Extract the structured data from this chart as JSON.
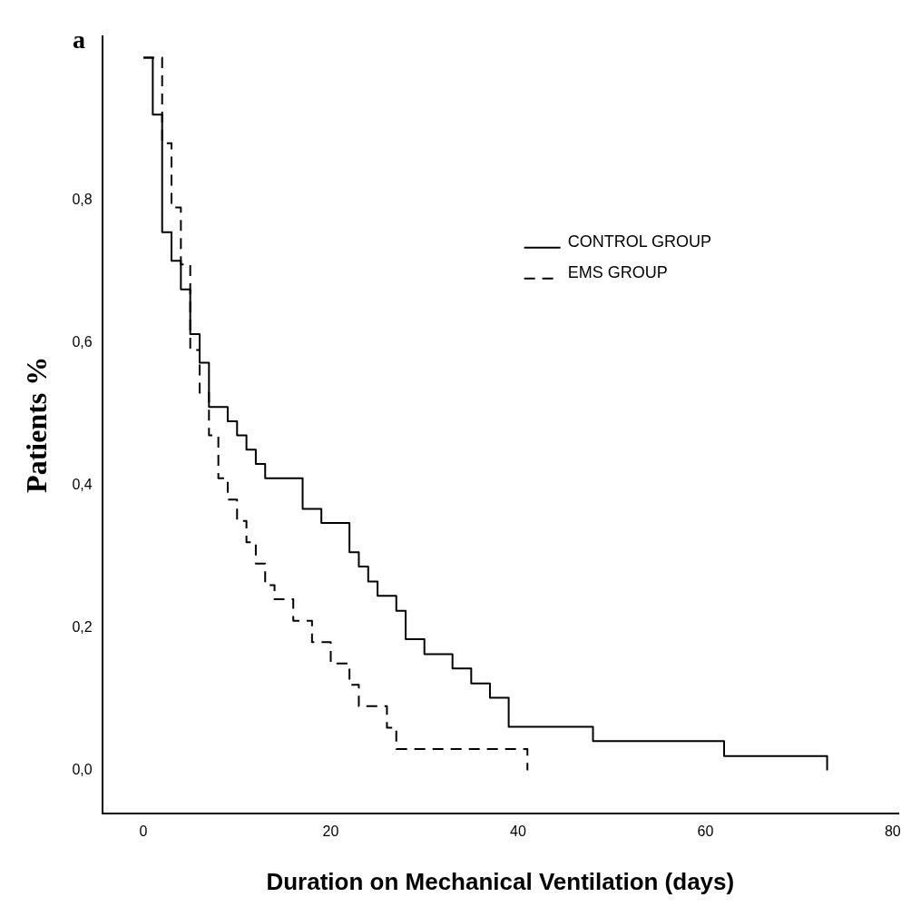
{
  "chart_data": {
    "type": "step",
    "title": "a",
    "xlabel": "Duration on Mechanical Ventilation (days)",
    "ylabel": "Patients %",
    "xlim": [
      -4.4,
      80.6
    ],
    "xticks": [
      0,
      20,
      40,
      60,
      80
    ],
    "ylim": [
      -0.06,
      1.03
    ],
    "yticks": [
      {
        "value": 0,
        "label": "0,0"
      },
      {
        "value": 0.2,
        "label": "0,2"
      },
      {
        "value": 0.4,
        "label": "0,4"
      },
      {
        "value": 0.6,
        "label": "0,6"
      },
      {
        "value": 0.8,
        "label": "0,8"
      }
    ],
    "grid": false,
    "legend": "top right",
    "marker": "none",
    "series": [
      {
        "name": "CONTROL GROUP",
        "color": "#000000",
        "line_style": "solid",
        "x": [
          0,
          1,
          2,
          3,
          4,
          5,
          6,
          7,
          9,
          10,
          11,
          12,
          13,
          17,
          19,
          22,
          23,
          24,
          25,
          27,
          28,
          30,
          33,
          35,
          37,
          39,
          48,
          62,
          73
        ],
        "values": [
          1.0,
          0.92,
          0.755,
          0.715,
          0.675,
          0.612,
          0.572,
          0.51,
          0.49,
          0.47,
          0.45,
          0.43,
          0.41,
          0.367,
          0.347,
          0.306,
          0.286,
          0.265,
          0.245,
          0.224,
          0.184,
          0.163,
          0.143,
          0.122,
          0.102,
          0.061,
          0.041,
          0.02,
          0.0
        ]
      },
      {
        "name": "EMS GROUP",
        "color": "#000000",
        "line_style": "dashed",
        "x": [
          0,
          2,
          3,
          4,
          5,
          6,
          7,
          8,
          9,
          10,
          11,
          12,
          13,
          14,
          16,
          18,
          20,
          22,
          23,
          26,
          27,
          41
        ],
        "values": [
          1.0,
          0.88,
          0.79,
          0.71,
          0.59,
          0.53,
          0.47,
          0.41,
          0.38,
          0.35,
          0.32,
          0.29,
          0.26,
          0.24,
          0.21,
          0.18,
          0.15,
          0.12,
          0.09,
          0.06,
          0.03,
          0.0
        ]
      }
    ]
  }
}
